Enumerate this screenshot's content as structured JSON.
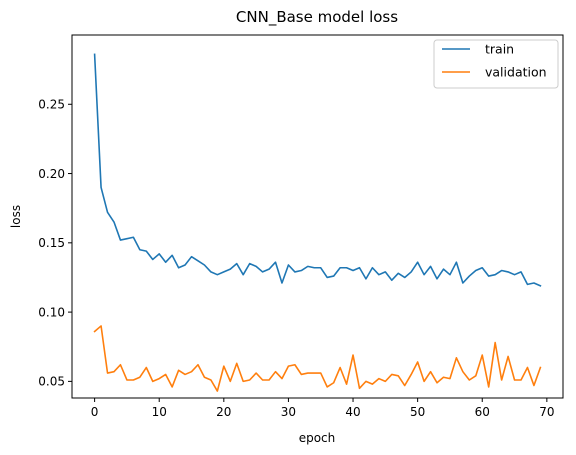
{
  "chart_data": {
    "type": "line",
    "title": "CNN_Base model loss",
    "xlabel": "epoch",
    "ylabel": "loss",
    "xlim": [
      -3.5,
      72.5
    ],
    "ylim": [
      0.038,
      0.3
    ],
    "xticks": [
      0,
      10,
      20,
      30,
      40,
      50,
      60,
      70
    ],
    "yticks": [
      0.05,
      0.1,
      0.15,
      0.2,
      0.25
    ],
    "ytick_labels": [
      "0.05",
      "0.10",
      "0.15",
      "0.20",
      "0.25"
    ],
    "grid": false,
    "legend_position": "top-right",
    "series": [
      {
        "name": "train",
        "color": "#1f77b4",
        "x": [
          0,
          1,
          2,
          3,
          4,
          5,
          6,
          7,
          8,
          9,
          10,
          11,
          12,
          13,
          14,
          15,
          16,
          17,
          18,
          19,
          20,
          21,
          22,
          23,
          24,
          25,
          26,
          27,
          28,
          29,
          30,
          31,
          32,
          33,
          34,
          35,
          36,
          37,
          38,
          39,
          40,
          41,
          42,
          43,
          44,
          45,
          46,
          47,
          48,
          49,
          50,
          51,
          52,
          53,
          54,
          55,
          56,
          57,
          58,
          59,
          60,
          61,
          62,
          63,
          64,
          65,
          66,
          67,
          68,
          69
        ],
        "y": [
          0.286,
          0.19,
          0.172,
          0.165,
          0.152,
          0.153,
          0.154,
          0.145,
          0.144,
          0.138,
          0.142,
          0.136,
          0.141,
          0.132,
          0.134,
          0.14,
          0.137,
          0.134,
          0.129,
          0.127,
          0.129,
          0.131,
          0.135,
          0.127,
          0.135,
          0.133,
          0.129,
          0.131,
          0.136,
          0.121,
          0.134,
          0.129,
          0.13,
          0.133,
          0.132,
          0.132,
          0.125,
          0.126,
          0.132,
          0.132,
          0.13,
          0.132,
          0.124,
          0.132,
          0.127,
          0.129,
          0.123,
          0.128,
          0.125,
          0.129,
          0.136,
          0.127,
          0.133,
          0.124,
          0.131,
          0.127,
          0.136,
          0.121,
          0.126,
          0.13,
          0.132,
          0.126,
          0.127,
          0.13,
          0.129,
          0.127,
          0.129,
          0.12,
          0.121,
          0.119
        ]
      },
      {
        "name": "validation",
        "color": "#ff7f0e",
        "x": [
          0,
          1,
          2,
          3,
          4,
          5,
          6,
          7,
          8,
          9,
          10,
          11,
          12,
          13,
          14,
          15,
          16,
          17,
          18,
          19,
          20,
          21,
          22,
          23,
          24,
          25,
          26,
          27,
          28,
          29,
          30,
          31,
          32,
          33,
          34,
          35,
          36,
          37,
          38,
          39,
          40,
          41,
          42,
          43,
          44,
          45,
          46,
          47,
          48,
          49,
          50,
          51,
          52,
          53,
          54,
          55,
          56,
          57,
          58,
          59,
          60,
          61,
          62,
          63,
          64,
          65,
          66,
          67,
          68,
          69
        ],
        "y": [
          0.086,
          0.09,
          0.056,
          0.057,
          0.062,
          0.051,
          0.051,
          0.053,
          0.06,
          0.05,
          0.052,
          0.055,
          0.046,
          0.058,
          0.055,
          0.057,
          0.062,
          0.053,
          0.051,
          0.043,
          0.061,
          0.05,
          0.063,
          0.05,
          0.051,
          0.056,
          0.051,
          0.051,
          0.057,
          0.052,
          0.061,
          0.062,
          0.055,
          0.056,
          0.056,
          0.056,
          0.046,
          0.049,
          0.06,
          0.048,
          0.069,
          0.045,
          0.05,
          0.048,
          0.052,
          0.05,
          0.055,
          0.054,
          0.047,
          0.055,
          0.064,
          0.05,
          0.057,
          0.049,
          0.053,
          0.052,
          0.067,
          0.057,
          0.051,
          0.054,
          0.069,
          0.046,
          0.078,
          0.051,
          0.068,
          0.051,
          0.051,
          0.06,
          0.047,
          0.06
        ]
      }
    ]
  }
}
